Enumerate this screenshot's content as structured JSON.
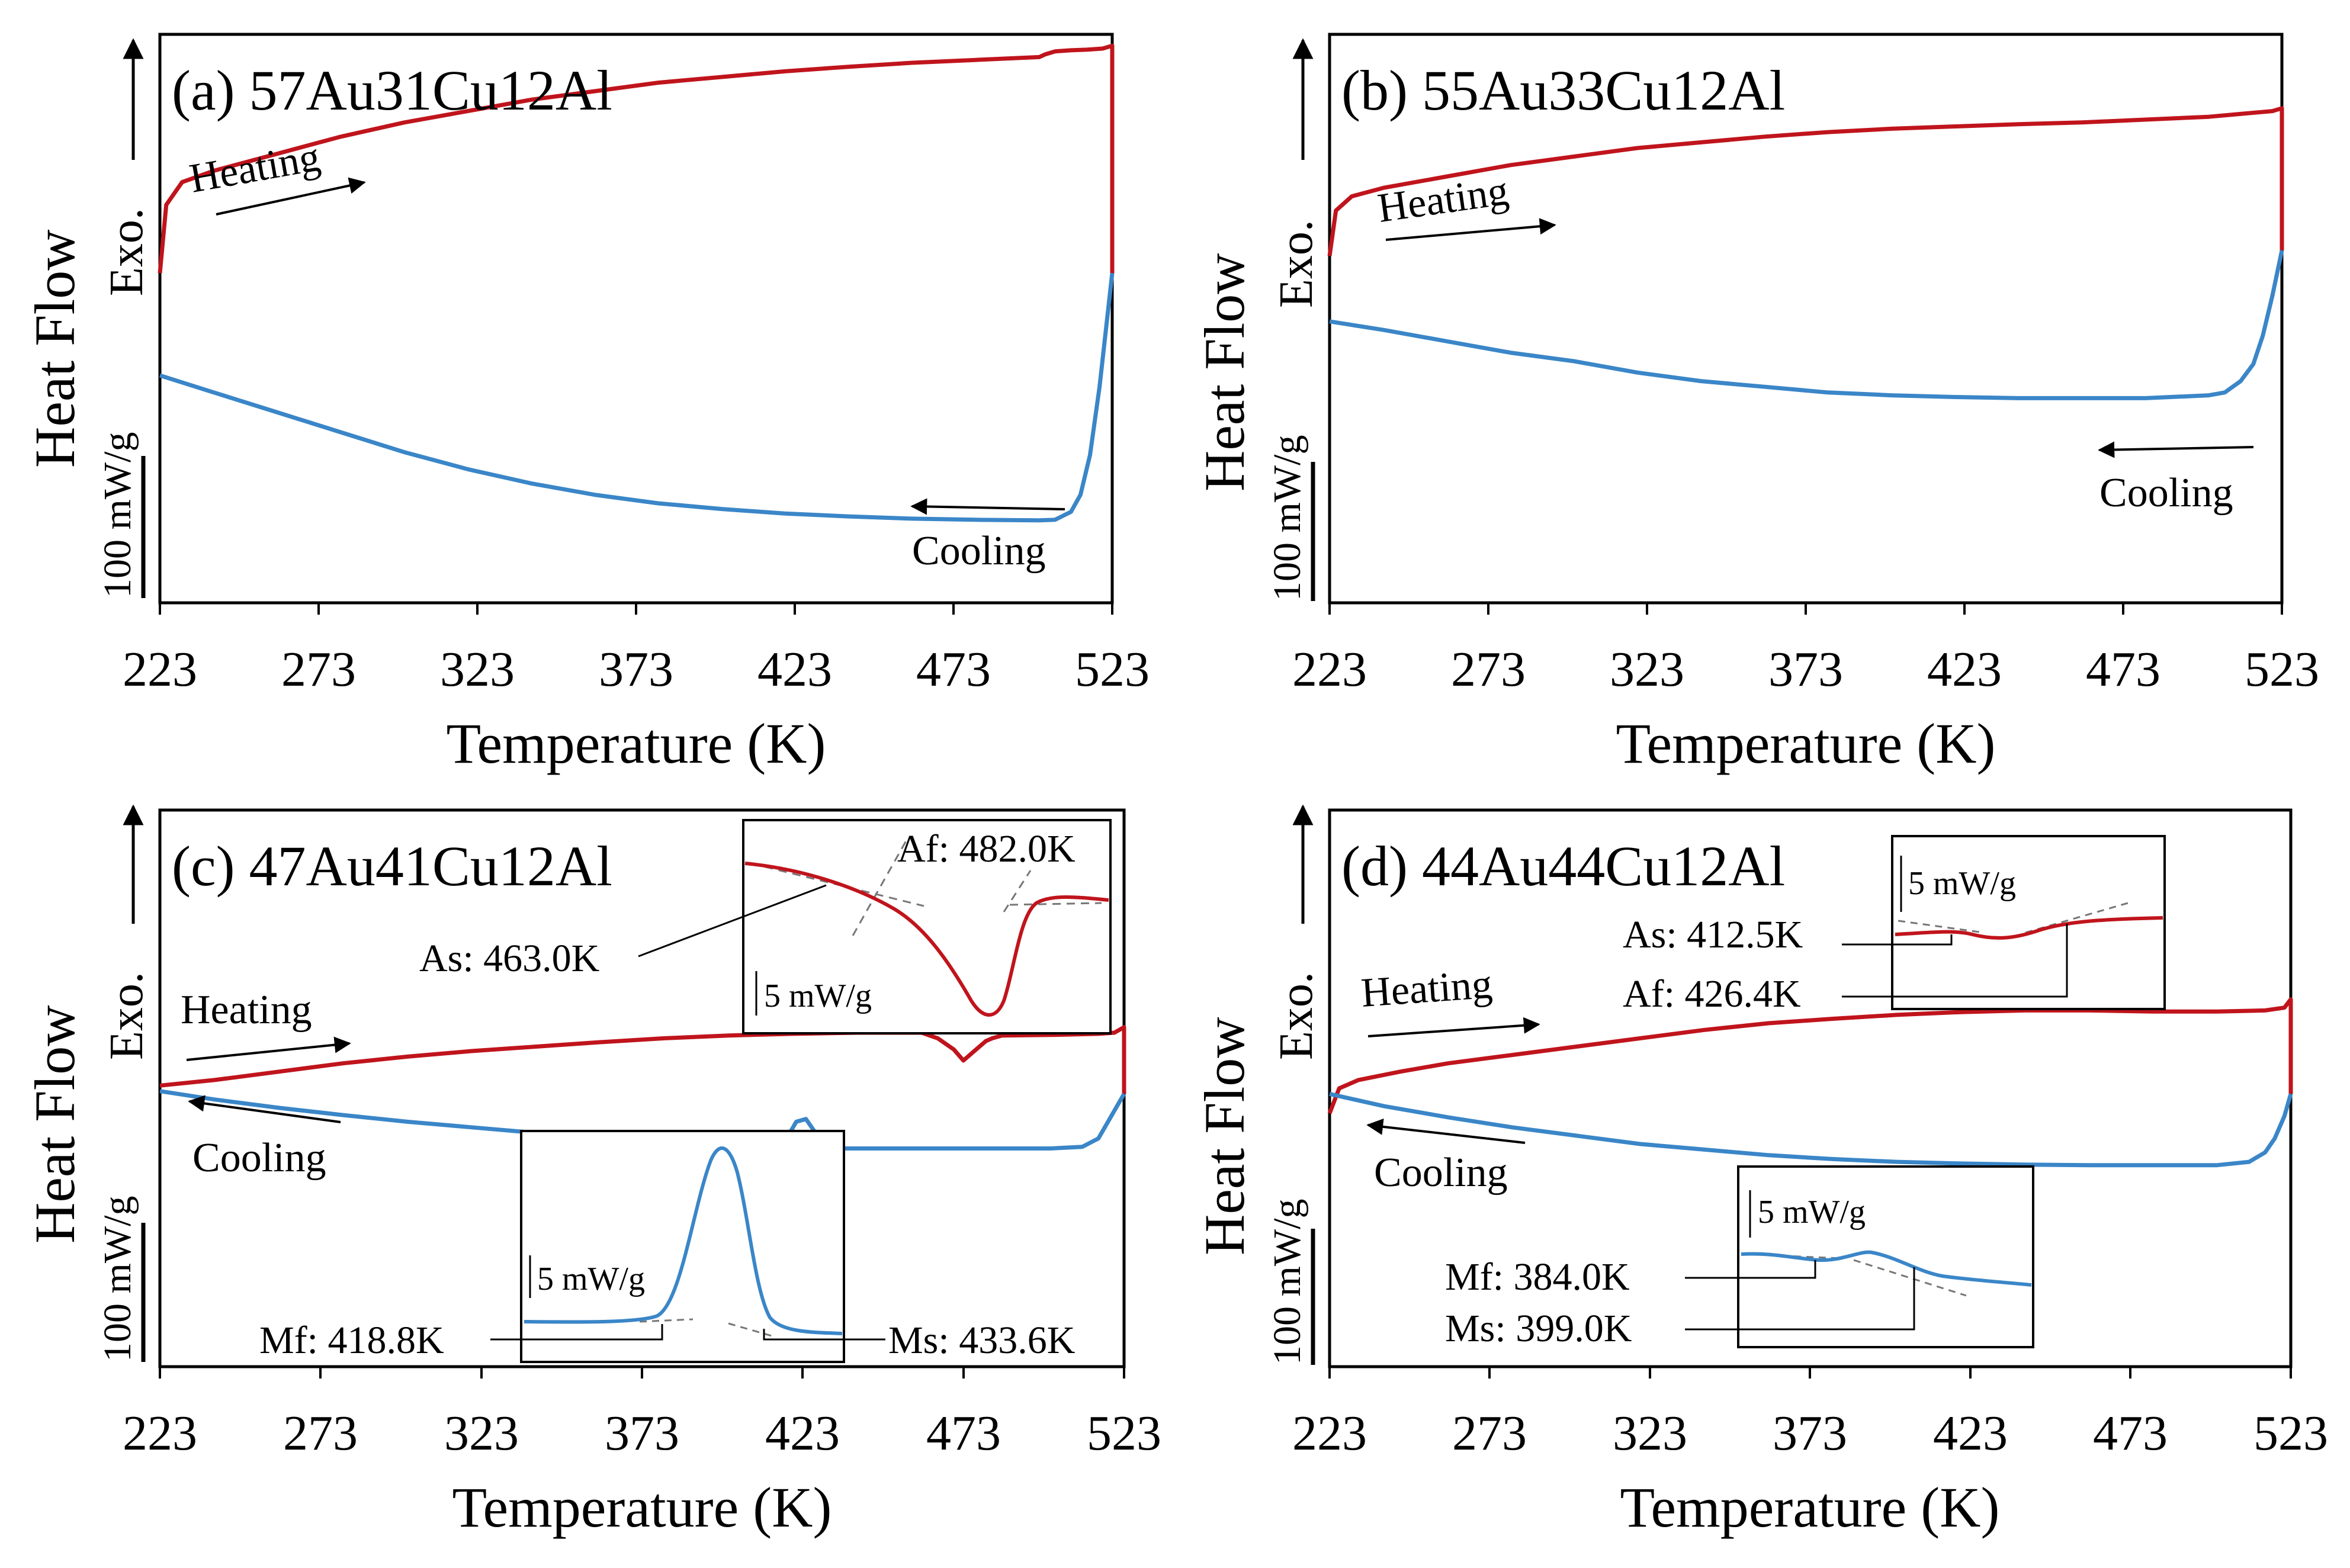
{
  "figure": {
    "colors": {
      "heating": "#c0141c",
      "cooling": "#3a86c8",
      "dash": "#777777"
    },
    "ylabel": "Heat Flow",
    "exo_label": "Exo.",
    "scale_label": "100 mW/g",
    "heating_label": "Heating",
    "cooling_label": "Cooling"
  },
  "chart_data": [
    {
      "type": "line",
      "title": "(a) 57Au31Cu12Al",
      "xlabel": "Temperature (K)",
      "xticks": [
        "223",
        "273",
        "323",
        "373",
        "423",
        "473",
        "523"
      ],
      "xlim": [
        223,
        523
      ],
      "ylim": [
        0,
        1
      ],
      "series": [
        {
          "name": "Heating",
          "color": "#c0141c",
          "x": [
            223,
            225,
            230,
            240,
            260,
            280,
            300,
            320,
            340,
            360,
            380,
            400,
            420,
            440,
            460,
            480,
            500,
            502,
            505,
            510,
            515,
            520,
            523,
            523
          ],
          "y": [
            0.58,
            0.7,
            0.74,
            0.76,
            0.79,
            0.82,
            0.845,
            0.865,
            0.885,
            0.9,
            0.915,
            0.925,
            0.935,
            0.943,
            0.95,
            0.955,
            0.96,
            0.965,
            0.97,
            0.972,
            0.973,
            0.975,
            0.98,
            0.58
          ]
        },
        {
          "name": "Cooling",
          "color": "#3a86c8",
          "x": [
            223,
            240,
            260,
            280,
            300,
            320,
            340,
            360,
            380,
            400,
            420,
            440,
            460,
            480,
            500,
            505,
            510,
            513,
            516,
            519,
            521,
            523
          ],
          "y": [
            0.4,
            0.37,
            0.335,
            0.3,
            0.265,
            0.235,
            0.21,
            0.19,
            0.175,
            0.165,
            0.157,
            0.152,
            0.148,
            0.146,
            0.145,
            0.146,
            0.16,
            0.19,
            0.26,
            0.38,
            0.48,
            0.58
          ]
        }
      ],
      "annotations": []
    },
    {
      "type": "line",
      "title": "(b) 55Au33Cu12Al",
      "xlabel": "Temperature (K)",
      "xticks": [
        "223",
        "273",
        "323",
        "373",
        "423",
        "473",
        "523"
      ],
      "xlim": [
        223,
        523
      ],
      "ylim": [
        0,
        1
      ],
      "series": [
        {
          "name": "Heating",
          "color": "#c0141c",
          "x": [
            223,
            225,
            230,
            240,
            260,
            280,
            300,
            320,
            340,
            360,
            380,
            400,
            420,
            440,
            460,
            480,
            500,
            510,
            520,
            523,
            523
          ],
          "y": [
            0.61,
            0.69,
            0.715,
            0.73,
            0.75,
            0.77,
            0.785,
            0.8,
            0.81,
            0.82,
            0.828,
            0.834,
            0.838,
            0.842,
            0.845,
            0.85,
            0.855,
            0.86,
            0.865,
            0.87,
            0.62
          ]
        },
        {
          "name": "Cooling",
          "color": "#3a86c8",
          "x": [
            223,
            240,
            260,
            280,
            300,
            320,
            340,
            360,
            380,
            400,
            420,
            440,
            460,
            480,
            500,
            505,
            510,
            514,
            517,
            520,
            523
          ],
          "y": [
            0.495,
            0.48,
            0.46,
            0.44,
            0.425,
            0.405,
            0.39,
            0.38,
            0.37,
            0.365,
            0.362,
            0.36,
            0.36,
            0.36,
            0.365,
            0.37,
            0.39,
            0.42,
            0.47,
            0.54,
            0.62
          ]
        }
      ],
      "annotations": []
    },
    {
      "type": "line",
      "title": "(c) 47Au41Cu12Al",
      "xlabel": "Temperature (K)",
      "xticks": [
        "223",
        "273",
        "323",
        "373",
        "423",
        "473",
        "523"
      ],
      "xlim": [
        223,
        523
      ],
      "ylim": [
        0,
        1
      ],
      "series": [
        {
          "name": "Heating",
          "color": "#c0141c",
          "x": [
            223,
            240,
            260,
            280,
            300,
            320,
            340,
            360,
            380,
            400,
            420,
            440,
            460,
            465,
            470,
            473,
            476,
            480,
            482,
            485,
            500,
            515,
            520,
            523,
            523
          ],
          "y": [
            0.505,
            0.515,
            0.53,
            0.545,
            0.557,
            0.567,
            0.575,
            0.583,
            0.59,
            0.595,
            0.598,
            0.6,
            0.6,
            0.59,
            0.57,
            0.55,
            0.565,
            0.585,
            0.59,
            0.595,
            0.596,
            0.598,
            0.6,
            0.61,
            0.49
          ]
        },
        {
          "name": "Cooling",
          "color": "#3a86c8",
          "x": [
            223,
            240,
            260,
            280,
            300,
            320,
            340,
            360,
            380,
            400,
            410,
            415,
            418,
            421,
            424,
            427,
            430,
            435,
            445,
            460,
            480,
            500,
            510,
            515,
            518,
            521,
            523
          ],
          "y": [
            0.495,
            0.48,
            0.465,
            0.452,
            0.44,
            0.43,
            0.42,
            0.41,
            0.402,
            0.395,
            0.392,
            0.395,
            0.41,
            0.44,
            0.445,
            0.42,
            0.398,
            0.392,
            0.392,
            0.392,
            0.392,
            0.392,
            0.395,
            0.41,
            0.44,
            0.47,
            0.49
          ]
        }
      ],
      "annotations": [
        "As: 463.0K",
        "Af: 482.0K",
        "5 mW/g",
        "5 mW/g",
        "Mf: 418.8K",
        "Ms: 433.6K"
      ]
    },
    {
      "type": "line",
      "title": "(d) 44Au44Cu12Al",
      "xlabel": "Temperature (K)",
      "xticks": [
        "223",
        "273",
        "323",
        "373",
        "423",
        "473",
        "523"
      ],
      "xlim": [
        223,
        523
      ],
      "ylim": [
        0,
        1
      ],
      "series": [
        {
          "name": "Heating",
          "color": "#c0141c",
          "x": [
            223,
            226,
            232,
            245,
            260,
            280,
            300,
            320,
            340,
            360,
            380,
            400,
            420,
            440,
            460,
            480,
            500,
            515,
            521,
            523,
            523
          ],
          "y": [
            0.455,
            0.5,
            0.515,
            0.53,
            0.545,
            0.56,
            0.575,
            0.59,
            0.605,
            0.617,
            0.625,
            0.632,
            0.637,
            0.64,
            0.64,
            0.638,
            0.638,
            0.64,
            0.645,
            0.66,
            0.49
          ]
        },
        {
          "name": "Cooling",
          "color": "#3a86c8",
          "x": [
            223,
            240,
            260,
            280,
            300,
            320,
            340,
            360,
            380,
            400,
            420,
            440,
            460,
            480,
            500,
            510,
            515,
            518,
            521,
            523
          ],
          "y": [
            0.49,
            0.468,
            0.448,
            0.43,
            0.415,
            0.4,
            0.39,
            0.38,
            0.373,
            0.368,
            0.365,
            0.363,
            0.362,
            0.362,
            0.362,
            0.368,
            0.385,
            0.41,
            0.45,
            0.49
          ]
        }
      ],
      "annotations": [
        "5 mW/g",
        "As: 412.5K",
        "Af: 426.4K",
        "5 mW/g",
        "Mf: 384.0K",
        "Ms: 399.0K"
      ]
    }
  ]
}
